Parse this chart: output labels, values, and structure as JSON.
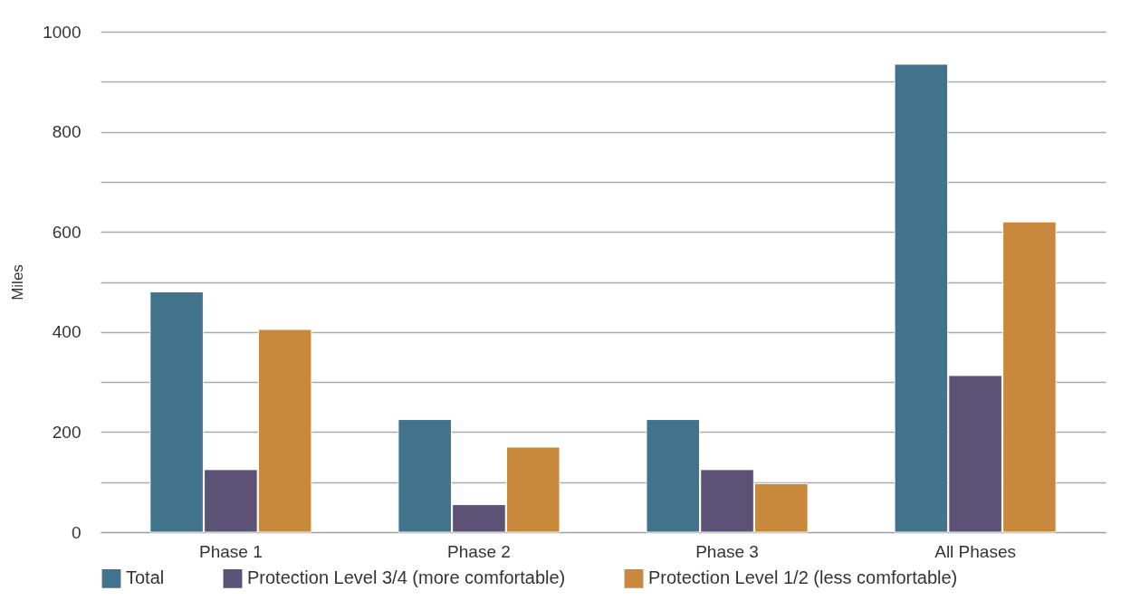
{
  "chart_data": {
    "type": "bar",
    "ylabel": "Miles",
    "categories": [
      "Phase 1",
      "Phase 2",
      "Phase 3",
      "All Phases"
    ],
    "series": [
      {
        "name": "Total",
        "color": "#41738c",
        "values": [
          480,
          225,
          225,
          935
        ]
      },
      {
        "name": "Protection Level 3/4 (more comfortable)",
        "color": "#5b5275",
        "values": [
          125,
          55,
          125,
          313
        ]
      },
      {
        "name": "Protection Level 1/2 (less comfortable)",
        "color": "#c8893c",
        "values": [
          405,
          170,
          97,
          620
        ]
      }
    ],
    "ylim": [
      0,
      1000
    ],
    "yticks": [
      0,
      {
        "value": 100,
        "label": null
      },
      200,
      {
        "value": 300,
        "label": null
      },
      400,
      {
        "value": 500,
        "label": null
      },
      600,
      {
        "value": 700,
        "label": null
      },
      800,
      {
        "value": 900,
        "label": null
      },
      1000
    ],
    "grid": "y",
    "legend": "bottom"
  }
}
